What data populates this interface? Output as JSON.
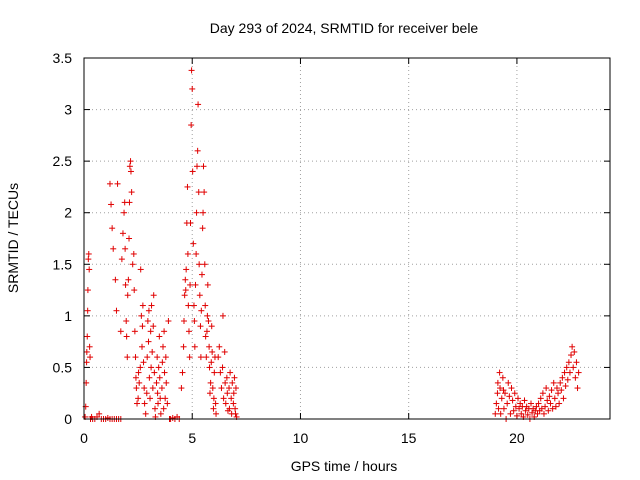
{
  "chart_data": {
    "type": "scatter",
    "title": "Day 293 of 2024, SRMTID for receiver bele",
    "xlabel": "GPS time / hours",
    "ylabel": "SRMTID / TECUs",
    "xlim": [
      0,
      24.3
    ],
    "ylim": [
      0,
      3.5
    ],
    "xticks": [
      0,
      5,
      10,
      15,
      20
    ],
    "yticks": [
      0,
      0.5,
      1,
      1.5,
      2,
      2.5,
      3,
      3.5
    ],
    "xtick_labels": [
      "0",
      "5",
      "10",
      "15",
      "20"
    ],
    "ytick_labels": [
      "0",
      "0.5",
      "1",
      "1.5",
      "2",
      "2.5",
      "3",
      "3.5"
    ],
    "grid": true,
    "marker": "+",
    "color": "#e00000",
    "series": [
      {
        "name": "SRMTID",
        "points": [
          [
            0.05,
            0.02
          ],
          [
            0.08,
            0.12
          ],
          [
            0.1,
            0.35
          ],
          [
            0.12,
            0.55
          ],
          [
            0.13,
            0.65
          ],
          [
            0.15,
            0.8
          ],
          [
            0.17,
            1.05
          ],
          [
            0.18,
            1.25
          ],
          [
            0.2,
            1.55
          ],
          [
            0.22,
            1.6
          ],
          [
            0.24,
            1.45
          ],
          [
            0.26,
            0.7
          ],
          [
            0.28,
            0.6
          ],
          [
            0.3,
            0.0
          ],
          [
            0.35,
            0.02
          ],
          [
            0.4,
            0.0
          ],
          [
            0.5,
            0.0
          ],
          [
            0.6,
            0.02
          ],
          [
            0.7,
            0.05
          ],
          [
            0.8,
            0.0
          ],
          [
            0.9,
            0.0
          ],
          [
            1.0,
            0.0
          ],
          [
            1.1,
            0.01
          ],
          [
            1.2,
            0.0
          ],
          [
            1.3,
            0.0
          ],
          [
            1.4,
            0.0
          ],
          [
            1.5,
            0.0
          ],
          [
            1.6,
            0.0
          ],
          [
            1.7,
            0.0
          ],
          [
            1.2,
            2.28
          ],
          [
            1.25,
            2.08
          ],
          [
            1.3,
            1.85
          ],
          [
            1.35,
            1.65
          ],
          [
            1.45,
            1.35
          ],
          [
            1.5,
            1.05
          ],
          [
            1.55,
            2.28
          ],
          [
            1.7,
            0.85
          ],
          [
            1.75,
            1.55
          ],
          [
            1.8,
            1.8
          ],
          [
            1.85,
            2.0
          ],
          [
            1.88,
            2.1
          ],
          [
            1.9,
            1.65
          ],
          [
            1.92,
            1.3
          ],
          [
            1.95,
            0.95
          ],
          [
            1.97,
            0.8
          ],
          [
            2.0,
            0.6
          ],
          [
            2.02,
            1.2
          ],
          [
            2.05,
            1.35
          ],
          [
            2.08,
            1.75
          ],
          [
            2.1,
            2.1
          ],
          [
            2.12,
            2.45
          ],
          [
            2.15,
            2.5
          ],
          [
            2.17,
            2.4
          ],
          [
            2.2,
            2.2
          ],
          [
            2.25,
            1.5
          ],
          [
            2.3,
            1.6
          ],
          [
            2.32,
            1.25
          ],
          [
            2.35,
            0.85
          ],
          [
            2.38,
            0.6
          ],
          [
            2.4,
            0.4
          ],
          [
            2.42,
            0.3
          ],
          [
            2.45,
            0.15
          ],
          [
            2.5,
            0.2
          ],
          [
            2.52,
            0.45
          ],
          [
            2.55,
            0.35
          ],
          [
            2.6,
            0.5
          ],
          [
            2.62,
            1.45
          ],
          [
            2.65,
            1.0
          ],
          [
            2.68,
            0.7
          ],
          [
            2.7,
            0.9
          ],
          [
            2.72,
            1.1
          ],
          [
            2.75,
            0.55
          ],
          [
            2.78,
            0.3
          ],
          [
            2.8,
            0.15
          ],
          [
            2.85,
            0.05
          ],
          [
            2.9,
            0.25
          ],
          [
            2.92,
            0.6
          ],
          [
            2.95,
            0.95
          ],
          [
            2.98,
            0.75
          ],
          [
            3.0,
            1.05
          ],
          [
            3.02,
            0.4
          ],
          [
            3.05,
            0.2
          ],
          [
            3.08,
            0.85
          ],
          [
            3.1,
            0.5
          ],
          [
            3.12,
            1.1
          ],
          [
            3.15,
            0.65
          ],
          [
            3.18,
            0.3
          ],
          [
            3.2,
            0.9
          ],
          [
            3.22,
            1.2
          ],
          [
            3.25,
            0.45
          ],
          [
            3.28,
            0.1
          ],
          [
            3.3,
            0.02
          ],
          [
            3.35,
            0.35
          ],
          [
            3.38,
            0.6
          ],
          [
            3.4,
            0.25
          ],
          [
            3.42,
            0.15
          ],
          [
            3.45,
            0.5
          ],
          [
            3.48,
            0.8
          ],
          [
            3.5,
            0.4
          ],
          [
            3.52,
            0.2
          ],
          [
            3.55,
            0.05
          ],
          [
            3.6,
            0.3
          ],
          [
            3.62,
            0.55
          ],
          [
            3.65,
            0.7
          ],
          [
            3.68,
            0.1
          ],
          [
            3.7,
            0.85
          ],
          [
            3.72,
            0.45
          ],
          [
            3.75,
            0.2
          ],
          [
            3.78,
            0.6
          ],
          [
            3.8,
            0.35
          ],
          [
            3.85,
            0.15
          ],
          [
            3.9,
            0.95
          ],
          [
            3.95,
            0.0
          ],
          [
            4.0,
            0.0
          ],
          [
            4.1,
            0.01
          ],
          [
            4.2,
            0.0
          ],
          [
            4.3,
            0.02
          ],
          [
            4.4,
            0.0
          ],
          [
            4.5,
            0.3
          ],
          [
            4.55,
            0.45
          ],
          [
            4.6,
            0.7
          ],
          [
            4.62,
            0.95
          ],
          [
            4.65,
            1.2
          ],
          [
            4.68,
            1.35
          ],
          [
            4.7,
            1.25
          ],
          [
            4.72,
            1.45
          ],
          [
            4.75,
            1.9
          ],
          [
            4.78,
            2.25
          ],
          [
            4.8,
            1.6
          ],
          [
            4.82,
            1.1
          ],
          [
            4.85,
            0.85
          ],
          [
            4.88,
            0.6
          ],
          [
            4.9,
            1.3
          ],
          [
            4.92,
            1.9
          ],
          [
            4.95,
            2.85
          ],
          [
            4.97,
            3.38
          ],
          [
            5.0,
            3.2
          ],
          [
            5.02,
            2.4
          ],
          [
            5.05,
            1.7
          ],
          [
            5.08,
            1.1
          ],
          [
            5.1,
            0.95
          ],
          [
            5.12,
            0.7
          ],
          [
            5.15,
            1.3
          ],
          [
            5.18,
            1.6
          ],
          [
            5.2,
            2.0
          ],
          [
            5.22,
            2.45
          ],
          [
            5.25,
            2.6
          ],
          [
            5.27,
            3.05
          ],
          [
            5.3,
            2.2
          ],
          [
            5.32,
            1.5
          ],
          [
            5.35,
            1.2
          ],
          [
            5.38,
            0.9
          ],
          [
            5.4,
            0.6
          ],
          [
            5.42,
            1.05
          ],
          [
            5.45,
            1.4
          ],
          [
            5.48,
            1.85
          ],
          [
            5.5,
            2.0
          ],
          [
            5.52,
            2.45
          ],
          [
            5.55,
            2.2
          ],
          [
            5.58,
            1.5
          ],
          [
            5.6,
            1.1
          ],
          [
            5.62,
            0.8
          ],
          [
            5.65,
            0.6
          ],
          [
            5.68,
            0.85
          ],
          [
            5.7,
            1.0
          ],
          [
            5.72,
            1.3
          ],
          [
            5.75,
            0.95
          ],
          [
            5.78,
            0.7
          ],
          [
            5.8,
            0.5
          ],
          [
            5.82,
            0.25
          ],
          [
            5.85,
            0.35
          ],
          [
            5.88,
            0.55
          ],
          [
            5.9,
            0.9
          ],
          [
            5.92,
            0.65
          ],
          [
            5.95,
            0.3
          ],
          [
            5.98,
            0.1
          ],
          [
            6.0,
            0.2
          ],
          [
            6.02,
            0.45
          ],
          [
            6.05,
            0.6
          ],
          [
            6.08,
            0.15
          ],
          [
            6.1,
            0.05
          ],
          [
            6.2,
            0.6
          ],
          [
            6.25,
            0.7
          ],
          [
            6.3,
            0.45
          ],
          [
            6.35,
            0.3
          ],
          [
            6.4,
            0.5
          ],
          [
            6.42,
            1.0
          ],
          [
            6.45,
            0.2
          ],
          [
            6.5,
            0.65
          ],
          [
            6.52,
            0.35
          ],
          [
            6.55,
            0.15
          ],
          [
            6.6,
            0.4
          ],
          [
            6.62,
            0.25
          ],
          [
            6.65,
            0.08
          ],
          [
            6.7,
            0.3
          ],
          [
            6.72,
            0.1
          ],
          [
            6.75,
            0.45
          ],
          [
            6.8,
            0.2
          ],
          [
            6.82,
            0.05
          ],
          [
            6.85,
            0.35
          ],
          [
            6.9,
            0.15
          ],
          [
            6.92,
            0.25
          ],
          [
            6.95,
            0.4
          ],
          [
            6.98,
            0.1
          ],
          [
            7.0,
            0.05
          ],
          [
            7.02,
            0.3
          ],
          [
            7.05,
            0.02
          ],
          [
            19.0,
            0.05
          ],
          [
            19.05,
            0.15
          ],
          [
            19.1,
            0.25
          ],
          [
            19.12,
            0.35
          ],
          [
            19.15,
            0.1
          ],
          [
            19.2,
            0.45
          ],
          [
            19.22,
            0.3
          ],
          [
            19.25,
            0.05
          ],
          [
            19.3,
            0.2
          ],
          [
            19.35,
            0.4
          ],
          [
            19.38,
            0.28
          ],
          [
            19.4,
            0.1
          ],
          [
            19.45,
            0.25
          ],
          [
            19.5,
            0.0
          ],
          [
            19.55,
            0.15
          ],
          [
            19.6,
            0.35
          ],
          [
            19.65,
            0.22
          ],
          [
            19.7,
            0.05
          ],
          [
            19.75,
            0.3
          ],
          [
            19.8,
            0.18
          ],
          [
            19.85,
            0.08
          ],
          [
            19.9,
            0.25
          ],
          [
            19.95,
            0.12
          ],
          [
            20.0,
            0.03
          ],
          [
            20.05,
            0.2
          ],
          [
            20.1,
            0.1
          ],
          [
            20.15,
            0.15
          ],
          [
            20.2,
            0.05
          ],
          [
            20.25,
            0.12
          ],
          [
            20.3,
            0.02
          ],
          [
            20.35,
            0.18
          ],
          [
            20.4,
            0.08
          ],
          [
            20.45,
            0.12
          ],
          [
            20.5,
            0.04
          ],
          [
            20.55,
            0.1
          ],
          [
            20.6,
            0.0
          ],
          [
            20.65,
            0.15
          ],
          [
            20.7,
            0.06
          ],
          [
            20.75,
            0.1
          ],
          [
            20.8,
            0.02
          ],
          [
            20.85,
            0.08
          ],
          [
            20.9,
            0.12
          ],
          [
            20.95,
            0.05
          ],
          [
            21.0,
            0.15
          ],
          [
            21.05,
            0.08
          ],
          [
            21.1,
            0.2
          ],
          [
            21.15,
            0.1
          ],
          [
            21.2,
            0.25
          ],
          [
            21.25,
            0.05
          ],
          [
            21.3,
            0.12
          ],
          [
            21.35,
            0.3
          ],
          [
            21.4,
            0.18
          ],
          [
            21.45,
            0.08
          ],
          [
            21.5,
            0.22
          ],
          [
            21.55,
            0.15
          ],
          [
            21.6,
            0.28
          ],
          [
            21.65,
            0.1
          ],
          [
            21.7,
            0.35
          ],
          [
            21.75,
            0.2
          ],
          [
            21.8,
            0.12
          ],
          [
            21.85,
            0.3
          ],
          [
            21.9,
            0.25
          ],
          [
            21.95,
            0.15
          ],
          [
            22.0,
            0.35
          ],
          [
            22.05,
            0.28
          ],
          [
            22.1,
            0.4
          ],
          [
            22.15,
            0.2
          ],
          [
            22.2,
            0.45
          ],
          [
            22.25,
            0.32
          ],
          [
            22.3,
            0.5
          ],
          [
            22.35,
            0.38
          ],
          [
            22.4,
            0.55
          ],
          [
            22.45,
            0.45
          ],
          [
            22.5,
            0.62
          ],
          [
            22.55,
            0.7
          ],
          [
            22.6,
            0.5
          ],
          [
            22.65,
            0.65
          ],
          [
            22.7,
            0.4
          ],
          [
            22.75,
            0.55
          ],
          [
            22.8,
            0.3
          ],
          [
            22.85,
            0.45
          ]
        ]
      }
    ]
  }
}
